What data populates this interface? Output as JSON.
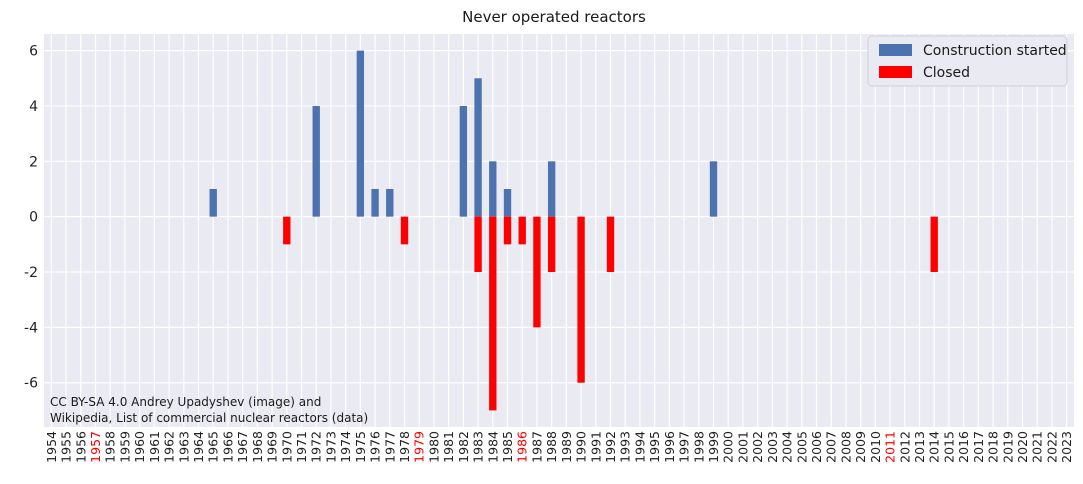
{
  "chart_data": {
    "type": "bar",
    "title": "Never operated reactors",
    "xlabel": "",
    "ylabel": "",
    "ylim": [
      -7.6,
      6.6
    ],
    "yticks": [
      6,
      4,
      2,
      0,
      -2,
      -4,
      -6
    ],
    "grid": true,
    "legend_position": "top-right",
    "categories": [
      "1954",
      "1955",
      "1956",
      "1957",
      "1958",
      "1959",
      "1960",
      "1961",
      "1962",
      "1963",
      "1964",
      "1965",
      "1966",
      "1967",
      "1968",
      "1969",
      "1970",
      "1971",
      "1972",
      "1973",
      "1974",
      "1975",
      "1976",
      "1977",
      "1978",
      "1979",
      "1980",
      "1981",
      "1982",
      "1983",
      "1984",
      "1985",
      "1986",
      "1987",
      "1988",
      "1989",
      "1990",
      "1991",
      "1992",
      "1993",
      "1994",
      "1995",
      "1996",
      "1997",
      "1998",
      "1999",
      "2000",
      "2001",
      "2002",
      "2003",
      "2004",
      "2005",
      "2006",
      "2007",
      "2008",
      "2009",
      "2010",
      "2011",
      "2012",
      "2013",
      "2014",
      "2015",
      "2016",
      "2017",
      "2018",
      "2019",
      "2020",
      "2021",
      "2022",
      "2023"
    ],
    "highlighted_categories": [
      "1957",
      "1979",
      "1986",
      "2011"
    ],
    "highlight_color": "#ff0000",
    "series": [
      {
        "name": "Construction started",
        "color": "#4c72b0",
        "values": [
          0,
          0,
          0,
          0,
          0,
          0,
          0,
          0,
          0,
          0,
          0,
          1,
          0,
          0,
          0,
          0,
          0,
          0,
          4,
          0,
          0,
          6,
          1,
          1,
          0,
          0,
          0,
          0,
          4,
          5,
          2,
          1,
          0,
          0,
          2,
          0,
          0,
          0,
          0,
          0,
          0,
          0,
          0,
          0,
          0,
          2,
          0,
          0,
          0,
          0,
          0,
          0,
          0,
          0,
          0,
          0,
          0,
          0,
          0,
          0,
          0,
          0,
          0,
          0,
          0,
          0,
          0,
          0,
          0,
          0
        ]
      },
      {
        "name": "Closed",
        "color": "#ff0000",
        "values": [
          0,
          0,
          0,
          0,
          0,
          0,
          0,
          0,
          0,
          0,
          0,
          0,
          0,
          0,
          0,
          0,
          -1,
          0,
          0,
          0,
          0,
          0,
          0,
          0,
          -1,
          0,
          0,
          0,
          0,
          -2,
          -7,
          -1,
          -1,
          -4,
          -2,
          0,
          -6,
          0,
          -2,
          0,
          0,
          0,
          0,
          0,
          0,
          0,
          0,
          0,
          0,
          0,
          0,
          0,
          0,
          0,
          0,
          0,
          0,
          0,
          0,
          0,
          -2,
          0,
          0,
          0,
          0,
          0,
          0,
          0,
          0,
          0
        ]
      }
    ],
    "annotation": [
      "CC BY-SA 4.0 Andrey Upadyshev (image) and",
      "Wikipedia, List of commercial nuclear reactors (data)"
    ]
  },
  "colors": {
    "plot_background": "#eaeaf2",
    "grid": "#ffffff",
    "tick_text": "#222222"
  }
}
